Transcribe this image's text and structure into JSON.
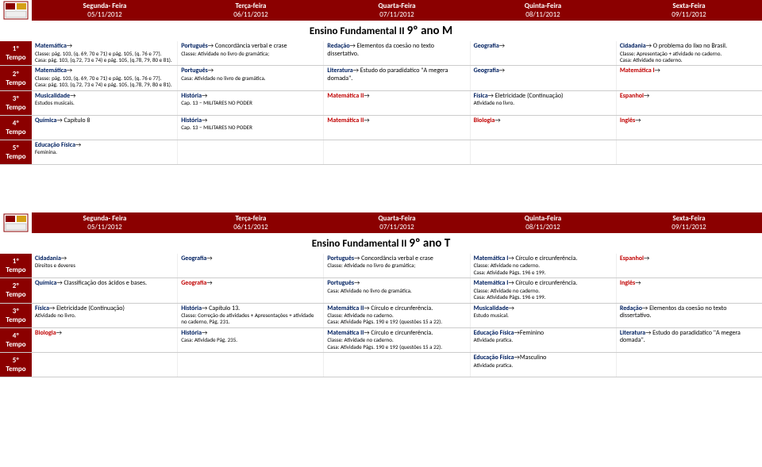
{
  "colors": {
    "header_bg": "#8b0000",
    "header_text": "#ffffff",
    "subject_red": "#c00000",
    "subject_blue": "#002060",
    "body_text": "#000000",
    "border": "#cccccc"
  },
  "days": [
    {
      "name": "Segunda- Feira",
      "date": "05/11/2012"
    },
    {
      "name": "Terça-feira",
      "date": "06/11/2012"
    },
    {
      "name": "Quarta-Feira",
      "date": "07/11/2012"
    },
    {
      "name": "Quinta-Feira",
      "date": "08/11/2012"
    },
    {
      "name": "Sexta-Feira",
      "date": "09/11/2012"
    }
  ],
  "tables": [
    {
      "title_prefix": "Ensino Fundamental II ",
      "title_main": "9º ano M",
      "periods": [
        {
          "label_top": "1º",
          "label_bot": "Tempo",
          "cells": [
            {
              "subj": "Matemática",
              "color": "blue",
              "detail": "",
              "extra": "Classe: pág. 103, (q. 69, 70 e 71) e pág. 105, (q. 76 e 77).\nCasa: pág. 103, (q.72, 73 e 74) e pág. 105, (q.78, 79, 80 e 81)."
            },
            {
              "subj": "Português",
              "color": "blue",
              "detail": " Concordância verbal e crase",
              "extra": "Classe: Atividade no livro de gramática;"
            },
            {
              "subj": "Redação",
              "color": "blue",
              "detail": " Elementos da coesão no texto dissertativo.",
              "extra": ""
            },
            {
              "subj": "Geografia",
              "color": "blue",
              "detail": "",
              "extra": ""
            },
            {
              "subj": "Cidadania",
              "color": "blue",
              "detail": " O problema do lixo no Brasil.",
              "extra": "Classe: Apresentação + atividade no caderno.\nCasa: Atividade no caderno."
            }
          ]
        },
        {
          "label_top": "2º",
          "label_bot": "Tempo",
          "cells": [
            {
              "subj": "Matemática",
              "color": "blue",
              "detail": "",
              "extra": "Classe: pág. 103, (q. 69, 70 e 71) e pág. 105, (q. 76 e 77).\nCasa: pág. 103, (q.72, 73 e 74) e pág. 105, (q.78, 79, 80 e 81)."
            },
            {
              "subj": "Português",
              "color": "blue",
              "detail": "",
              "extra": "Casa: Atividade no livro de gramática."
            },
            {
              "subj": "Literatura",
              "color": "blue",
              "detail": " Estudo do paradidatico \"A megera domada\".",
              "extra": ""
            },
            {
              "subj": "Geografia",
              "color": "blue",
              "detail": "",
              "extra": ""
            },
            {
              "subj": "Matemática I",
              "color": "red",
              "detail": "",
              "extra": ""
            }
          ]
        },
        {
          "label_top": "3º",
          "label_bot": "Tempo",
          "cells": [
            {
              "subj": "Musicalidade",
              "color": "blue",
              "detail": "",
              "extra": "Estudos musicais."
            },
            {
              "subj": "História",
              "color": "blue",
              "detail": "",
              "extra": "Cap. 13 – MILITARES NO PODER"
            },
            {
              "subj": "Matemática II",
              "color": "red",
              "detail": "",
              "extra": ""
            },
            {
              "subj": "Física",
              "color": "blue",
              "detail": " Eletricidade (Continuação)",
              "extra": "Atividade no livro."
            },
            {
              "subj": "Espanhol",
              "color": "red",
              "detail": "",
              "extra": ""
            }
          ]
        },
        {
          "label_top": "4º",
          "label_bot": "Tempo",
          "cells": [
            {
              "subj": "Química",
              "color": "blue",
              "detail": " Capítulo 8",
              "extra": ""
            },
            {
              "subj": "História",
              "color": "blue",
              "detail": "",
              "extra": "Cap. 13 – MILITARES NO PODER"
            },
            {
              "subj": "Matemática II",
              "color": "red",
              "detail": "",
              "extra": ""
            },
            {
              "subj": "Biologia",
              "color": "red",
              "detail": "",
              "extra": ""
            },
            {
              "subj": "Inglês",
              "color": "red",
              "detail": "",
              "extra": ""
            }
          ]
        },
        {
          "label_top": "5º",
          "label_bot": "Tempo",
          "cells": [
            {
              "subj": "Educação Física",
              "color": "blue",
              "detail": "",
              "extra": "Feminina."
            },
            {
              "subj": "",
              "color": "",
              "detail": "",
              "extra": ""
            },
            {
              "subj": "",
              "color": "",
              "detail": "",
              "extra": ""
            },
            {
              "subj": "",
              "color": "",
              "detail": "",
              "extra": ""
            },
            {
              "subj": "",
              "color": "",
              "detail": "",
              "extra": ""
            }
          ]
        }
      ]
    },
    {
      "title_prefix": "Ensino Fundamental II ",
      "title_main": "9º ano T",
      "periods": [
        {
          "label_top": "1º",
          "label_bot": "Tempo",
          "cells": [
            {
              "subj": "Cidadania",
              "color": "blue",
              "detail": "",
              "extra": "Direitos e deveres"
            },
            {
              "subj": "Geografia",
              "color": "blue",
              "detail": "",
              "extra": ""
            },
            {
              "subj": "Português",
              "color": "blue",
              "detail": " Concordância verbal e crase",
              "extra": "Classe: Atividade no livro de gramática;"
            },
            {
              "subj": "Matemática I",
              "color": "blue",
              "detail": " Círculo e circunferência.",
              "extra": "Classe: Atividade no caderno.\nCasa: Atividade Págs. 196 e 199."
            },
            {
              "subj": "Espanhol",
              "color": "red",
              "detail": "",
              "extra": ""
            }
          ]
        },
        {
          "label_top": "2º",
          "label_bot": "Tempo",
          "cells": [
            {
              "subj": "Química",
              "color": "blue",
              "detail": " Classificação dos ácidos e bases.",
              "extra": ""
            },
            {
              "subj": "Geografia",
              "color": "red",
              "detail": "",
              "extra": ""
            },
            {
              "subj": "Português",
              "color": "blue",
              "detail": "",
              "extra": "Casa: Atividade no livro de gramática."
            },
            {
              "subj": "Matemática I",
              "color": "blue",
              "detail": " Círculo e circunferência.",
              "extra": "Classe: Atividade no caderno.\nCasa: Atividade Págs. 196 e 199."
            },
            {
              "subj": "Inglês",
              "color": "red",
              "detail": "",
              "extra": ""
            }
          ]
        },
        {
          "label_top": "3º",
          "label_bot": "Tempo",
          "cells": [
            {
              "subj": "Física",
              "color": "blue",
              "detail": " Eletricidade (Continuação)",
              "extra": "Atividade no livro."
            },
            {
              "subj": "História",
              "color": "blue",
              "detail": " Capítulo 13.",
              "extra": "Classe: Correção de atividades + Apresentações + atividade no caderno, Pág. 231."
            },
            {
              "subj": "Matemática II",
              "color": "blue",
              "detail": " Círculo e circunferência.",
              "extra": "Classe: Atividade no caderno.\nCasa: Atividade Págs. 190 e 192 (questões 15 a 22)."
            },
            {
              "subj": "Musicalidade",
              "color": "blue",
              "detail": "",
              "extra": "Estudo musical."
            },
            {
              "subj": "Redação",
              "color": "blue",
              "detail": " Elementos da coesão no texto dissertativo.",
              "extra": ""
            }
          ]
        },
        {
          "label_top": "4º",
          "label_bot": "Tempo",
          "cells": [
            {
              "subj": "Biologia",
              "color": "red",
              "detail": "",
              "extra": ""
            },
            {
              "subj": "História",
              "color": "blue",
              "detail": "",
              "extra": "Casa: Atividade Pág. 235."
            },
            {
              "subj": "Matemática II",
              "color": "blue",
              "detail": " Círculo e circunferência.",
              "extra": "Classe: Atividade no caderno.\nCasa: Atividade Págs. 190 e 192 (questões 15 a 22)."
            },
            {
              "subj": "Educação Física",
              "color": "blue",
              "detail": "Feminino",
              "extra": "Atividade pratica."
            },
            {
              "subj": "Literatura",
              "color": "blue",
              "detail": " Estudo do paradidatico \"A megera domada\".",
              "extra": ""
            }
          ]
        },
        {
          "label_top": "5º",
          "label_bot": "Tempo",
          "cells": [
            {
              "subj": "",
              "color": "",
              "detail": "",
              "extra": ""
            },
            {
              "subj": "",
              "color": "",
              "detail": "",
              "extra": ""
            },
            {
              "subj": "",
              "color": "",
              "detail": "",
              "extra": ""
            },
            {
              "subj": "Educação Física",
              "color": "blue",
              "detail": "Masculino",
              "extra": "Atividade pratica."
            },
            {
              "subj": "",
              "color": "",
              "detail": "",
              "extra": ""
            }
          ]
        }
      ]
    }
  ]
}
